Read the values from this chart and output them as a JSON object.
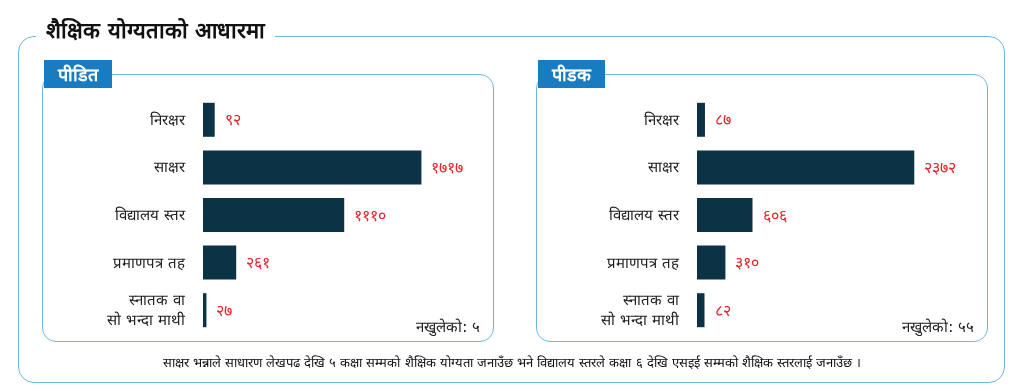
{
  "chart_data": [
    {
      "type": "other",
      "title": "शैक्षिक योग्यताको आधारमा",
      "annotations": [
        "साक्षर भन्नाले साधारण लेखपढ देखि ५ कक्षा सम्मको शैक्षिक योग्यता जनाउँछ भने विद्यालय स्तरले कक्षा ६ देखि एसइई सम्मको शैक्षिक स्तरलाई जनाउँछ ।"
      ]
    },
    {
      "type": "bar",
      "orientation": "horizontal",
      "title": "पीडित",
      "categories": [
        "निरक्षर",
        "साक्षर",
        "विद्यालय स्तर",
        "प्रमाणपत्र तह",
        "स्नातक वा\nसो भन्दा माथी"
      ],
      "color": "#0c3246",
      "values": [
        92,
        1717,
        1110,
        261,
        27
      ],
      "value_labels": [
        "९२",
        "१७१७",
        "१११०",
        "२६१",
        "२७"
      ],
      "annotations": [
        "नखुलेको: ५"
      ]
    },
    {
      "type": "bar",
      "orientation": "horizontal",
      "title": "पीडक",
      "categories": [
        "निरक्षर",
        "साक्षर",
        "विद्यालय स्तर",
        "प्रमाणपत्र तह",
        "स्नातक वा\nसो भन्दा माथी"
      ],
      "color": "#0c3246",
      "values": [
        87,
        2372,
        606,
        310,
        82
      ],
      "value_labels": [
        "८७",
        "२३७२",
        "६०६",
        "३१०",
        "८२"
      ],
      "annotations": [
        "नखुलेको: ५५"
      ]
    }
  ]
}
